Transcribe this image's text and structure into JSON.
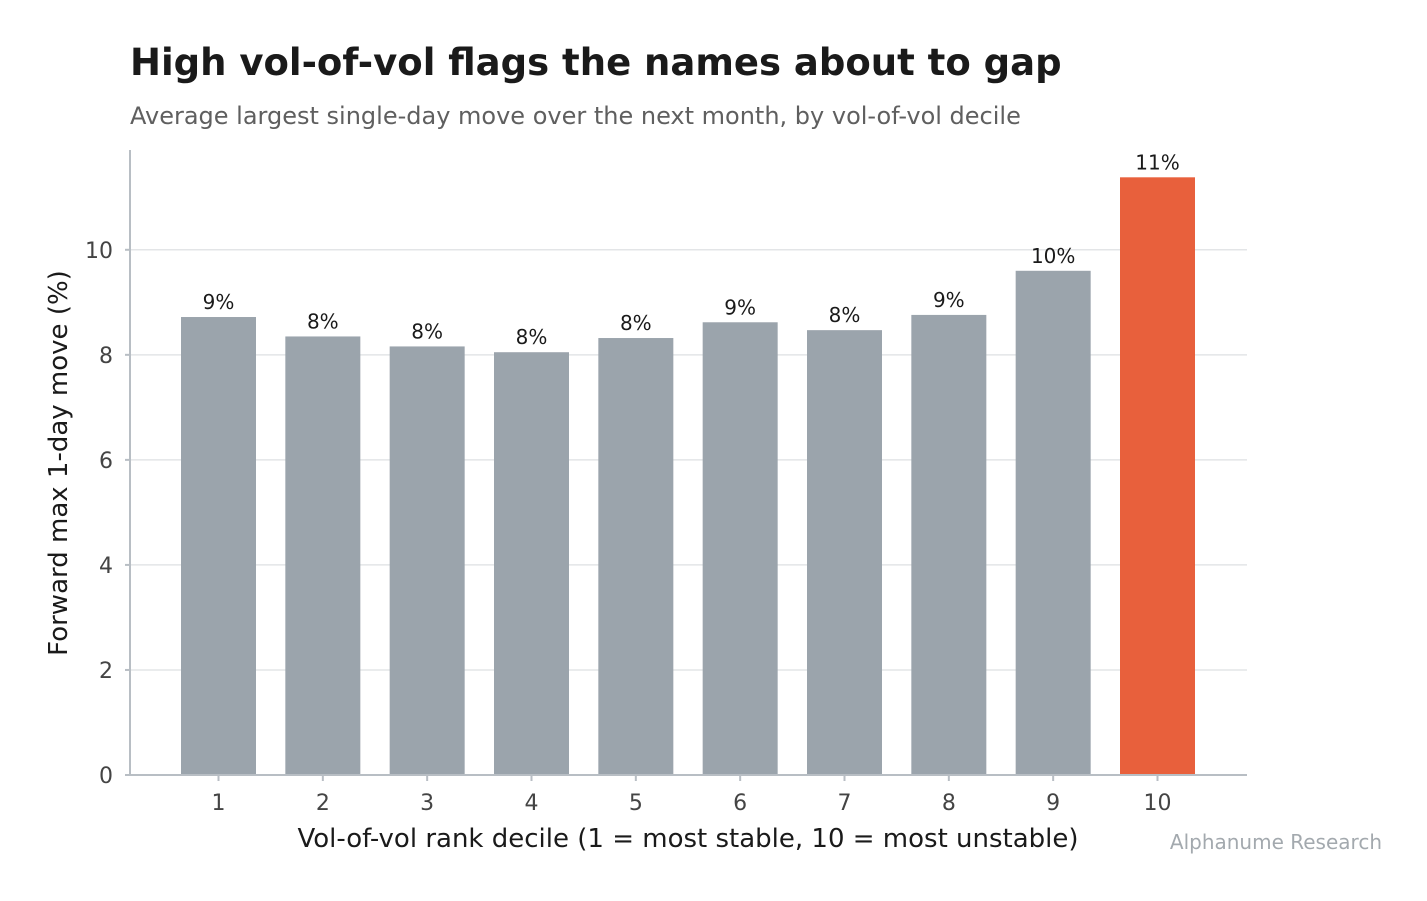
{
  "chart_data": {
    "type": "bar",
    "title": "High vol-of-vol flags the names about to gap",
    "subtitle": "Average largest single-day move over the next month, by vol-of-vol decile",
    "xlabel": "Vol-of-vol rank decile (1 = most stable, 10 = most unstable)",
    "ylabel": "Forward max 1-day move (%)",
    "categories": [
      "1",
      "2",
      "3",
      "4",
      "5",
      "6",
      "7",
      "8",
      "9",
      "10"
    ],
    "values": [
      8.72,
      8.35,
      8.16,
      8.05,
      8.32,
      8.62,
      8.47,
      8.76,
      9.6,
      11.38
    ],
    "data_labels": [
      "9%",
      "8%",
      "8%",
      "8%",
      "8%",
      "9%",
      "8%",
      "9%",
      "10%",
      "11%"
    ],
    "yticks": [
      0,
      2,
      4,
      6,
      8,
      10
    ],
    "ylim": [
      0,
      11.9
    ],
    "grid": true,
    "colors": {
      "default_bar": "#9ba4ac",
      "highlight_bar": "#e8603c"
    },
    "highlight_index": 9,
    "source": "Alphanume Research"
  }
}
